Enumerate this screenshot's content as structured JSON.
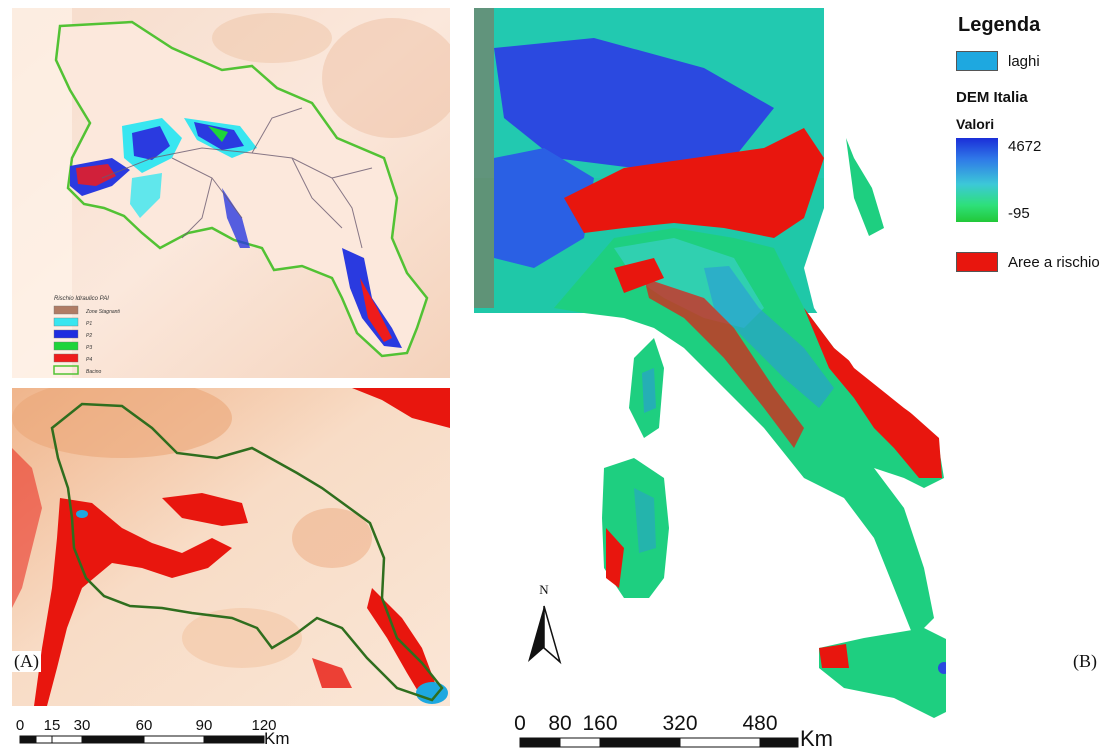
{
  "legend": {
    "title": "Legenda",
    "lakes_label": "laghi",
    "dem_title": "DEM Italia",
    "values_label": "Valori",
    "max_value": "4672",
    "min_value": "-95",
    "risk_label": "Aree a rischio",
    "colors": {
      "lakes": "#1ea8e0",
      "risk": "#e8160e",
      "dem_high": "#1a2ed8",
      "dem_low": "#22c838",
      "basin_outline_light": "#52c234",
      "basin_outline_dark": "#2f6e1e"
    }
  },
  "inset_legend": {
    "title": "Rischio Idraulico PAI",
    "items": [
      {
        "label": "Zone Stagnanti",
        "color": "#b07c64"
      },
      {
        "label": "P1",
        "color": "#38e6f0"
      },
      {
        "label": "P2",
        "color": "#1e2ee0"
      },
      {
        "label": "P3",
        "color": "#1ed43a"
      },
      {
        "label": "P4",
        "color": "#ee1c1c"
      },
      {
        "label": "Bacino",
        "color": "#52c234"
      }
    ]
  },
  "scale_a": {
    "ticks": [
      "0",
      "15",
      "30",
      "60",
      "90",
      "120"
    ],
    "unit": "Km"
  },
  "scale_b": {
    "ticks": [
      "0",
      "80",
      "160",
      "320",
      "480"
    ],
    "unit": "Km"
  },
  "north_label": "N",
  "panel_a_label": "(A)",
  "panel_b_label": "(B)"
}
